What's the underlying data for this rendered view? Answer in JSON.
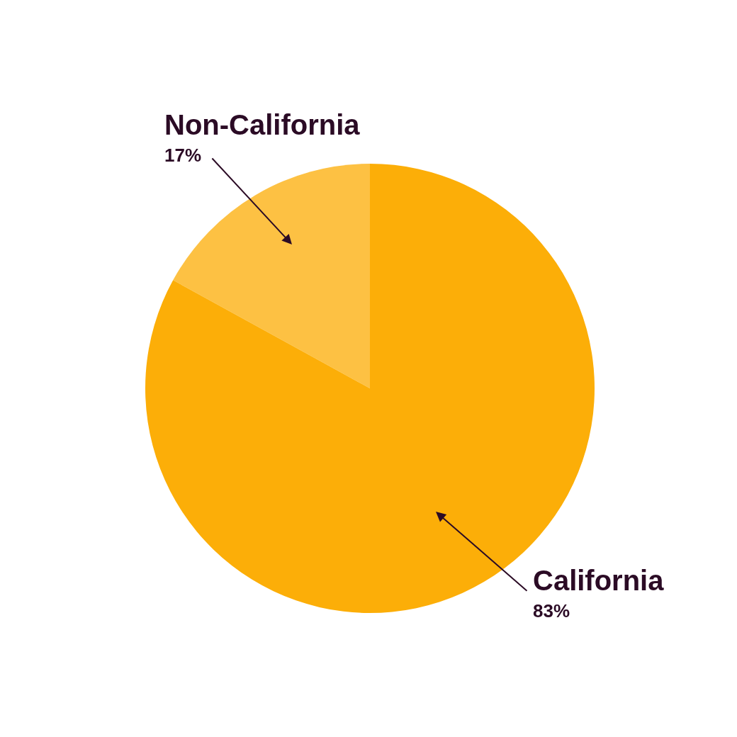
{
  "chart_data": {
    "type": "pie",
    "categories": [
      "Non-California",
      "California"
    ],
    "values": [
      17,
      83
    ],
    "colors": [
      "#fdc143",
      "#fcae08"
    ],
    "value_labels": [
      "17%",
      "83%"
    ]
  }
}
